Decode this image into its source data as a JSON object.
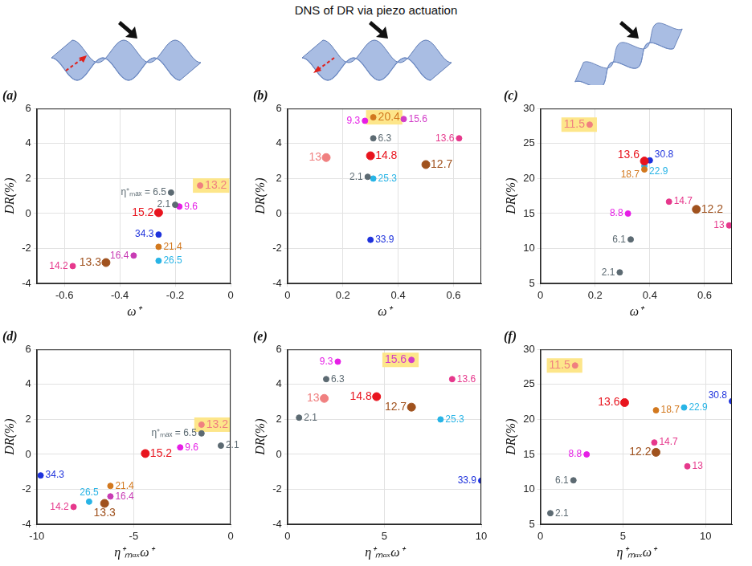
{
  "title": "DNS of DR via piezo actuation",
  "chart_data": [
    {
      "type": "scatter",
      "title": "(a)",
      "x_label": "ω⁺",
      "y_label": "DR(%)",
      "xlim": [
        -0.7,
        0
      ],
      "xticks": [
        -0.6,
        -0.4,
        -0.2,
        0
      ],
      "ylim": [
        -4,
        6
      ],
      "yticks": [
        -4,
        -2,
        0,
        2,
        4,
        6
      ],
      "grid": true,
      "data_labels": true,
      "series": [
        {
          "name": "η⁺ₘₐₓ = 6.5",
          "color": "#5c6a72",
          "x": [
            -0.215
          ],
          "values": [
            1.2
          ],
          "marker": "circle"
        },
        {
          "name": "2.1",
          "color": "#5c6a72",
          "x": [
            -0.2
          ],
          "values": [
            0.5
          ],
          "marker": "circle"
        },
        {
          "name": "13.2",
          "color": "#f08080",
          "x": [
            -0.11
          ],
          "values": [
            1.6
          ],
          "marker": "highlighted"
        },
        {
          "name": "9.6",
          "color": "#e61ee6",
          "x": [
            -0.185
          ],
          "values": [
            0.4
          ],
          "marker": "circle"
        },
        {
          "name": "15.2",
          "color": "#e8141e",
          "x": [
            -0.26
          ],
          "values": [
            0.05
          ],
          "marker": "large circle"
        },
        {
          "name": "34.3",
          "color": "#1e32dc",
          "x": [
            -0.26
          ],
          "values": [
            -1.2
          ],
          "marker": "circle"
        },
        {
          "name": "16.4",
          "color": "#c83cb4",
          "x": [
            -0.35
          ],
          "values": [
            -2.4
          ],
          "marker": "circle"
        },
        {
          "name": "21.4",
          "color": "#d2781e",
          "x": [
            -0.26
          ],
          "values": [
            -1.9
          ],
          "marker": "circle"
        },
        {
          "name": "26.5",
          "color": "#28b4e6",
          "x": [
            -0.26
          ],
          "values": [
            -2.7
          ],
          "marker": "circle"
        },
        {
          "name": "13.3",
          "color": "#a0521e",
          "x": [
            -0.45
          ],
          "values": [
            -2.8
          ],
          "marker": "large circle"
        },
        {
          "name": "14.2",
          "color": "#e6388c",
          "x": [
            -0.57
          ],
          "values": [
            -3.0
          ],
          "marker": "circle"
        }
      ]
    },
    {
      "type": "scatter",
      "title": "(b)",
      "x_label": "ω⁺",
      "y_label": "DR(%)",
      "xlim": [
        0,
        0.7
      ],
      "xticks": [
        0,
        0.2,
        0.4,
        0.6
      ],
      "ylim": [
        -4,
        6
      ],
      "yticks": [
        -4,
        -2,
        0,
        2,
        4,
        6
      ],
      "grid": true,
      "data_labels": true,
      "series": [
        {
          "name": "20.4",
          "color": "#d2781e",
          "x": [
            0.31
          ],
          "values": [
            5.5
          ],
          "marker": "highlighted"
        },
        {
          "name": "9.3",
          "color": "#e61ee6",
          "x": [
            0.28
          ],
          "values": [
            5.3
          ],
          "marker": "circle"
        },
        {
          "name": "15.6",
          "color": "#d23cc8",
          "x": [
            0.42
          ],
          "values": [
            5.4
          ],
          "marker": "circle"
        },
        {
          "name": "6.3",
          "color": "#5c6a72",
          "x": [
            0.31
          ],
          "values": [
            4.3
          ],
          "marker": "circle"
        },
        {
          "name": "13.6",
          "color": "#e6388c",
          "x": [
            0.62
          ],
          "values": [
            4.3
          ],
          "marker": "circle"
        },
        {
          "name": "13",
          "color": "#f08080",
          "x": [
            0.14
          ],
          "values": [
            3.2
          ],
          "marker": "large circle"
        },
        {
          "name": "14.8",
          "color": "#e8141e",
          "x": [
            0.3
          ],
          "values": [
            3.3
          ],
          "marker": "large circle"
        },
        {
          "name": "12.7",
          "color": "#a0521e",
          "x": [
            0.5
          ],
          "values": [
            2.8
          ],
          "marker": "large circle"
        },
        {
          "name": "2.1",
          "color": "#5c6a72",
          "x": [
            0.29
          ],
          "values": [
            2.1
          ],
          "marker": "circle"
        },
        {
          "name": "25.3",
          "color": "#28b4e6",
          "x": [
            0.31
          ],
          "values": [
            2.0
          ],
          "marker": "circle"
        },
        {
          "name": "33.9",
          "color": "#1e32dc",
          "x": [
            0.3
          ],
          "values": [
            -1.5
          ],
          "marker": "circle"
        }
      ]
    },
    {
      "type": "scatter",
      "title": "(c)",
      "x_label": "ω⁺",
      "y_label": "DR(%)",
      "xlim": [
        0,
        0.7
      ],
      "xticks": [
        0,
        0.2,
        0.4,
        0.6
      ],
      "ylim": [
        5,
        30
      ],
      "yticks": [
        5,
        10,
        15,
        20,
        25,
        30
      ],
      "grid": true,
      "data_labels": true,
      "series": [
        {
          "name": "11.5",
          "color": "#f08080",
          "x": [
            0.18
          ],
          "values": [
            27.7
          ],
          "marker": "highlighted"
        },
        {
          "name": "13.6",
          "color": "#e8141e",
          "x": [
            0.38
          ],
          "values": [
            22.5
          ],
          "marker": "large circle"
        },
        {
          "name": "30.8",
          "color": "#1e32dc",
          "x": [
            0.4
          ],
          "values": [
            22.6
          ],
          "marker": "circle"
        },
        {
          "name": "18.7",
          "color": "#d2781e",
          "x": [
            0.38
          ],
          "values": [
            21.3
          ],
          "marker": "circle"
        },
        {
          "name": "22.9",
          "color": "#28b4e6",
          "x": [
            0.38
          ],
          "values": [
            21.8
          ],
          "marker": "circle"
        },
        {
          "name": "14.7",
          "color": "#e6388c",
          "x": [
            0.47
          ],
          "values": [
            16.7
          ],
          "marker": "circle"
        },
        {
          "name": "8.8",
          "color": "#e61ee6",
          "x": [
            0.32
          ],
          "values": [
            15.0
          ],
          "marker": "circle"
        },
        {
          "name": "12.2",
          "color": "#a0521e",
          "x": [
            0.57
          ],
          "values": [
            15.6
          ],
          "marker": "large circle"
        },
        {
          "name": "13",
          "color": "#e6388c",
          "x": [
            0.69
          ],
          "values": [
            13.3
          ],
          "marker": "circle"
        },
        {
          "name": "6.1",
          "color": "#5c6a72",
          "x": [
            0.33
          ],
          "values": [
            11.3
          ],
          "marker": "circle"
        },
        {
          "name": "2.1",
          "color": "#5c6a72",
          "x": [
            0.29
          ],
          "values": [
            6.6
          ],
          "marker": "circle"
        }
      ]
    },
    {
      "type": "scatter",
      "title": "(d)",
      "x_label": "η⁺ₘₐₓω⁺",
      "y_label": "DR(%)",
      "xlim": [
        -10,
        0
      ],
      "xticks": [
        -10,
        -5,
        0
      ],
      "ylim": [
        -4,
        6
      ],
      "yticks": [
        -4,
        -2,
        0,
        2,
        4,
        6
      ],
      "grid": true,
      "data_labels": true,
      "series": [
        {
          "name": "η⁺ₘₐₓ = 6.5",
          "color": "#5c6a72",
          "x": [
            -1.5
          ],
          "values": [
            1.2
          ],
          "marker": "circle"
        },
        {
          "name": "2.1",
          "color": "#5c6a72",
          "x": [
            -0.5
          ],
          "values": [
            0.5
          ],
          "marker": "circle"
        },
        {
          "name": "13.2",
          "color": "#f08080",
          "x": [
            -1.5
          ],
          "values": [
            1.7
          ],
          "marker": "highlighted"
        },
        {
          "name": "9.6",
          "color": "#e61ee6",
          "x": [
            -2.6
          ],
          "values": [
            0.4
          ],
          "marker": "circle"
        },
        {
          "name": "15.2",
          "color": "#e8141e",
          "x": [
            -4.4
          ],
          "values": [
            0.05
          ],
          "marker": "large circle"
        },
        {
          "name": "34.3",
          "color": "#1e32dc",
          "x": [
            -9.8
          ],
          "values": [
            -1.2
          ],
          "marker": "circle"
        },
        {
          "name": "16.4",
          "color": "#c83cb4",
          "x": [
            -6.2
          ],
          "values": [
            -2.4
          ],
          "marker": "circle"
        },
        {
          "name": "21.4",
          "color": "#d2781e",
          "x": [
            -6.2
          ],
          "values": [
            -1.8
          ],
          "marker": "circle"
        },
        {
          "name": "26.5",
          "color": "#28b4e6",
          "x": [
            -7.3
          ],
          "values": [
            -2.7
          ],
          "marker": "circle"
        },
        {
          "name": "13.3",
          "color": "#a0521e",
          "x": [
            -6.5
          ],
          "values": [
            -2.8
          ],
          "marker": "large circle"
        },
        {
          "name": "14.2",
          "color": "#e6388c",
          "x": [
            -8.1
          ],
          "values": [
            -3.0
          ],
          "marker": "circle"
        }
      ]
    },
    {
      "type": "scatter",
      "title": "(e)",
      "x_label": "η⁺ₘₐₓω⁺",
      "y_label": "DR(%)",
      "xlim": [
        0,
        10
      ],
      "xticks": [
        0,
        5,
        10
      ],
      "ylim": [
        -4,
        6
      ],
      "yticks": [
        -4,
        -2,
        0,
        2,
        4,
        6
      ],
      "grid": true,
      "data_labels": true,
      "series": [
        {
          "name": "9.3",
          "color": "#e61ee6",
          "x": [
            2.6
          ],
          "values": [
            5.3
          ],
          "marker": "circle"
        },
        {
          "name": "6.3",
          "color": "#5c6a72",
          "x": [
            2.0
          ],
          "values": [
            4.3
          ],
          "marker": "circle"
        },
        {
          "name": "13",
          "color": "#f08080",
          "x": [
            1.9
          ],
          "values": [
            3.2
          ],
          "marker": "large circle"
        },
        {
          "name": "2.1",
          "color": "#5c6a72",
          "x": [
            0.6
          ],
          "values": [
            2.1
          ],
          "marker": "circle"
        },
        {
          "name": "15.6",
          "color": "#d23cc8",
          "x": [
            6.4
          ],
          "values": [
            5.4
          ],
          "marker": "highlighted"
        },
        {
          "name": "13.6",
          "color": "#e6388c",
          "x": [
            8.5
          ],
          "values": [
            4.3
          ],
          "marker": "circle"
        },
        {
          "name": "14.8",
          "color": "#e8141e",
          "x": [
            4.6
          ],
          "values": [
            3.3
          ],
          "marker": "large circle"
        },
        {
          "name": "12.7",
          "color": "#a0521e",
          "x": [
            6.4
          ],
          "values": [
            2.7
          ],
          "marker": "large circle"
        },
        {
          "name": "25.3",
          "color": "#28b4e6",
          "x": [
            7.9
          ],
          "values": [
            2.0
          ],
          "marker": "circle"
        },
        {
          "name": "33.9",
          "color": "#1e32dc",
          "x": [
            10.0
          ],
          "values": [
            -1.5
          ],
          "marker": "circle"
        }
      ]
    },
    {
      "type": "scatter",
      "title": "(f)",
      "x_label": "η⁺ₘₐₓω⁺",
      "y_label": "DR(%)",
      "xlim": [
        0,
        11.6
      ],
      "xticks": [
        0,
        5,
        10
      ],
      "ylim": [
        5,
        30
      ],
      "yticks": [
        5,
        10,
        15,
        20,
        25,
        30
      ],
      "grid": true,
      "data_labels": true,
      "series": [
        {
          "name": "11.5",
          "color": "#f08080",
          "x": [
            2.1
          ],
          "values": [
            27.7
          ],
          "marker": "highlighted"
        },
        {
          "name": "13.6",
          "color": "#e8141e",
          "x": [
            5.1
          ],
          "values": [
            22.4
          ],
          "marker": "large circle"
        },
        {
          "name": "30.8",
          "color": "#1e32dc",
          "x": [
            11.6
          ],
          "values": [
            22.6
          ],
          "marker": "circle"
        },
        {
          "name": "18.7",
          "color": "#d2781e",
          "x": [
            7.0
          ],
          "values": [
            21.3
          ],
          "marker": "circle"
        },
        {
          "name": "22.9",
          "color": "#28b4e6",
          "x": [
            8.7
          ],
          "values": [
            21.7
          ],
          "marker": "circle"
        },
        {
          "name": "14.7",
          "color": "#e6388c",
          "x": [
            6.9
          ],
          "values": [
            16.7
          ],
          "marker": "circle"
        },
        {
          "name": "8.8",
          "color": "#e61ee6",
          "x": [
            2.8
          ],
          "values": [
            15.0
          ],
          "marker": "circle"
        },
        {
          "name": "12.2",
          "color": "#a0521e",
          "x": [
            7.0
          ],
          "values": [
            15.3
          ],
          "marker": "large circle"
        },
        {
          "name": "13",
          "color": "#e6388c",
          "x": [
            8.9
          ],
          "values": [
            13.3
          ],
          "marker": "circle"
        },
        {
          "name": "6.1",
          "color": "#5c6a72",
          "x": [
            2.0
          ],
          "values": [
            11.3
          ],
          "marker": "circle"
        },
        {
          "name": "2.1",
          "color": "#5c6a72",
          "x": [
            0.6
          ],
          "values": [
            6.6
          ],
          "marker": "circle"
        }
      ]
    }
  ]
}
